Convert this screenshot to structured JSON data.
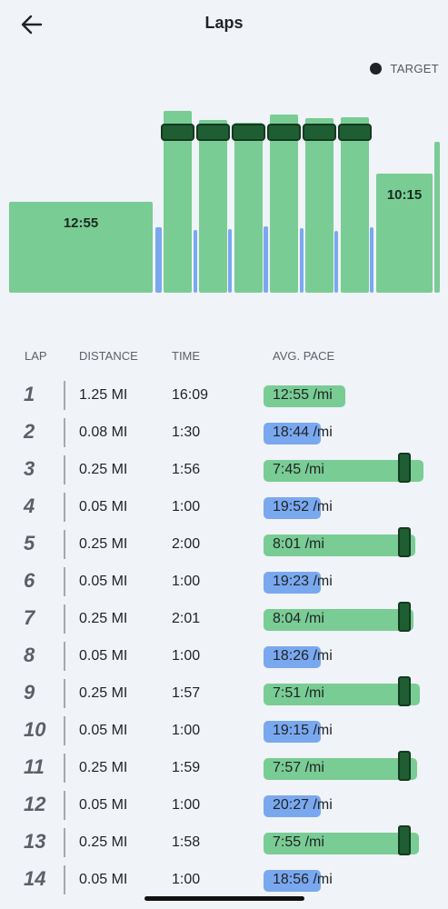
{
  "header": {
    "title": "Laps"
  },
  "legend": {
    "target_label": "TARGET"
  },
  "chart_data": {
    "type": "bar",
    "note_labels": [
      "12:55",
      "10:15"
    ],
    "bars": [
      {
        "kind": "run",
        "label": "12:55",
        "target": false
      },
      {
        "kind": "rest",
        "label": "",
        "target": false
      },
      {
        "kind": "run",
        "label": "",
        "target": true
      },
      {
        "kind": "rest",
        "label": "",
        "target": false
      },
      {
        "kind": "run",
        "label": "",
        "target": true
      },
      {
        "kind": "rest",
        "label": "",
        "target": false
      },
      {
        "kind": "run",
        "label": "",
        "target": true
      },
      {
        "kind": "rest",
        "label": "",
        "target": false
      },
      {
        "kind": "run",
        "label": "",
        "target": true
      },
      {
        "kind": "rest",
        "label": "",
        "target": false
      },
      {
        "kind": "run",
        "label": "",
        "target": true
      },
      {
        "kind": "rest",
        "label": "",
        "target": false
      },
      {
        "kind": "run",
        "label": "",
        "target": true
      },
      {
        "kind": "rest",
        "label": "",
        "target": false
      },
      {
        "kind": "run",
        "label": "10:15",
        "target": false
      },
      {
        "kind": "run",
        "label": "",
        "target": false
      }
    ]
  },
  "table": {
    "headers": {
      "lap": "LAP",
      "distance": "DISTANCE",
      "time": "TIME",
      "pace": "AVG. PACE"
    },
    "rows": [
      {
        "lap": "1",
        "distance": "1.25 MI",
        "time": "16:09",
        "pace": "12:55 /mi",
        "kind": "run",
        "level": 0.51,
        "target": false
      },
      {
        "lap": "2",
        "distance": "0.08 MI",
        "time": "1:30",
        "pace": "18:44 /mi",
        "kind": "rest",
        "level": 0.36,
        "target": false
      },
      {
        "lap": "3",
        "distance": "0.25 MI",
        "time": "1:56",
        "pace": "7:45 /mi",
        "kind": "run",
        "level": 1.0,
        "target": true
      },
      {
        "lap": "4",
        "distance": "0.05 MI",
        "time": "1:00",
        "pace": "19:52 /mi",
        "kind": "rest",
        "level": 0.36,
        "target": false
      },
      {
        "lap": "5",
        "distance": "0.25 MI",
        "time": "2:00",
        "pace": "8:01 /mi",
        "kind": "run",
        "level": 0.95,
        "target": true
      },
      {
        "lap": "6",
        "distance": "0.05 MI",
        "time": "1:00",
        "pace": "19:23 /mi",
        "kind": "rest",
        "level": 0.36,
        "target": false
      },
      {
        "lap": "7",
        "distance": "0.25 MI",
        "time": "2:01",
        "pace": "8:04 /mi",
        "kind": "run",
        "level": 0.94,
        "target": true
      },
      {
        "lap": "8",
        "distance": "0.05 MI",
        "time": "1:00",
        "pace": "18:26 /mi",
        "kind": "rest",
        "level": 0.36,
        "target": false
      },
      {
        "lap": "9",
        "distance": "0.25 MI",
        "time": "1:57",
        "pace": "7:51 /mi",
        "kind": "run",
        "level": 0.98,
        "target": true
      },
      {
        "lap": "10",
        "distance": "0.05 MI",
        "time": "1:00",
        "pace": "19:15 /mi",
        "kind": "rest",
        "level": 0.36,
        "target": false
      },
      {
        "lap": "11",
        "distance": "0.25 MI",
        "time": "1:59",
        "pace": "7:57 /mi",
        "kind": "run",
        "level": 0.96,
        "target": true
      },
      {
        "lap": "12",
        "distance": "0.05 MI",
        "time": "1:00",
        "pace": "20:27 /mi",
        "kind": "rest",
        "level": 0.36,
        "target": false
      },
      {
        "lap": "13",
        "distance": "0.25 MI",
        "time": "1:58",
        "pace": "7:55 /mi",
        "kind": "run",
        "level": 0.97,
        "target": true
      },
      {
        "lap": "14",
        "distance": "0.05 MI",
        "time": "1:00",
        "pace": "18:56 /mi",
        "kind": "rest",
        "level": 0.36,
        "target": false
      }
    ]
  },
  "colors": {
    "run": "#79cc94",
    "rest": "#7aa8ef",
    "target": "#1f5e33",
    "background": "#f0f3f7"
  }
}
